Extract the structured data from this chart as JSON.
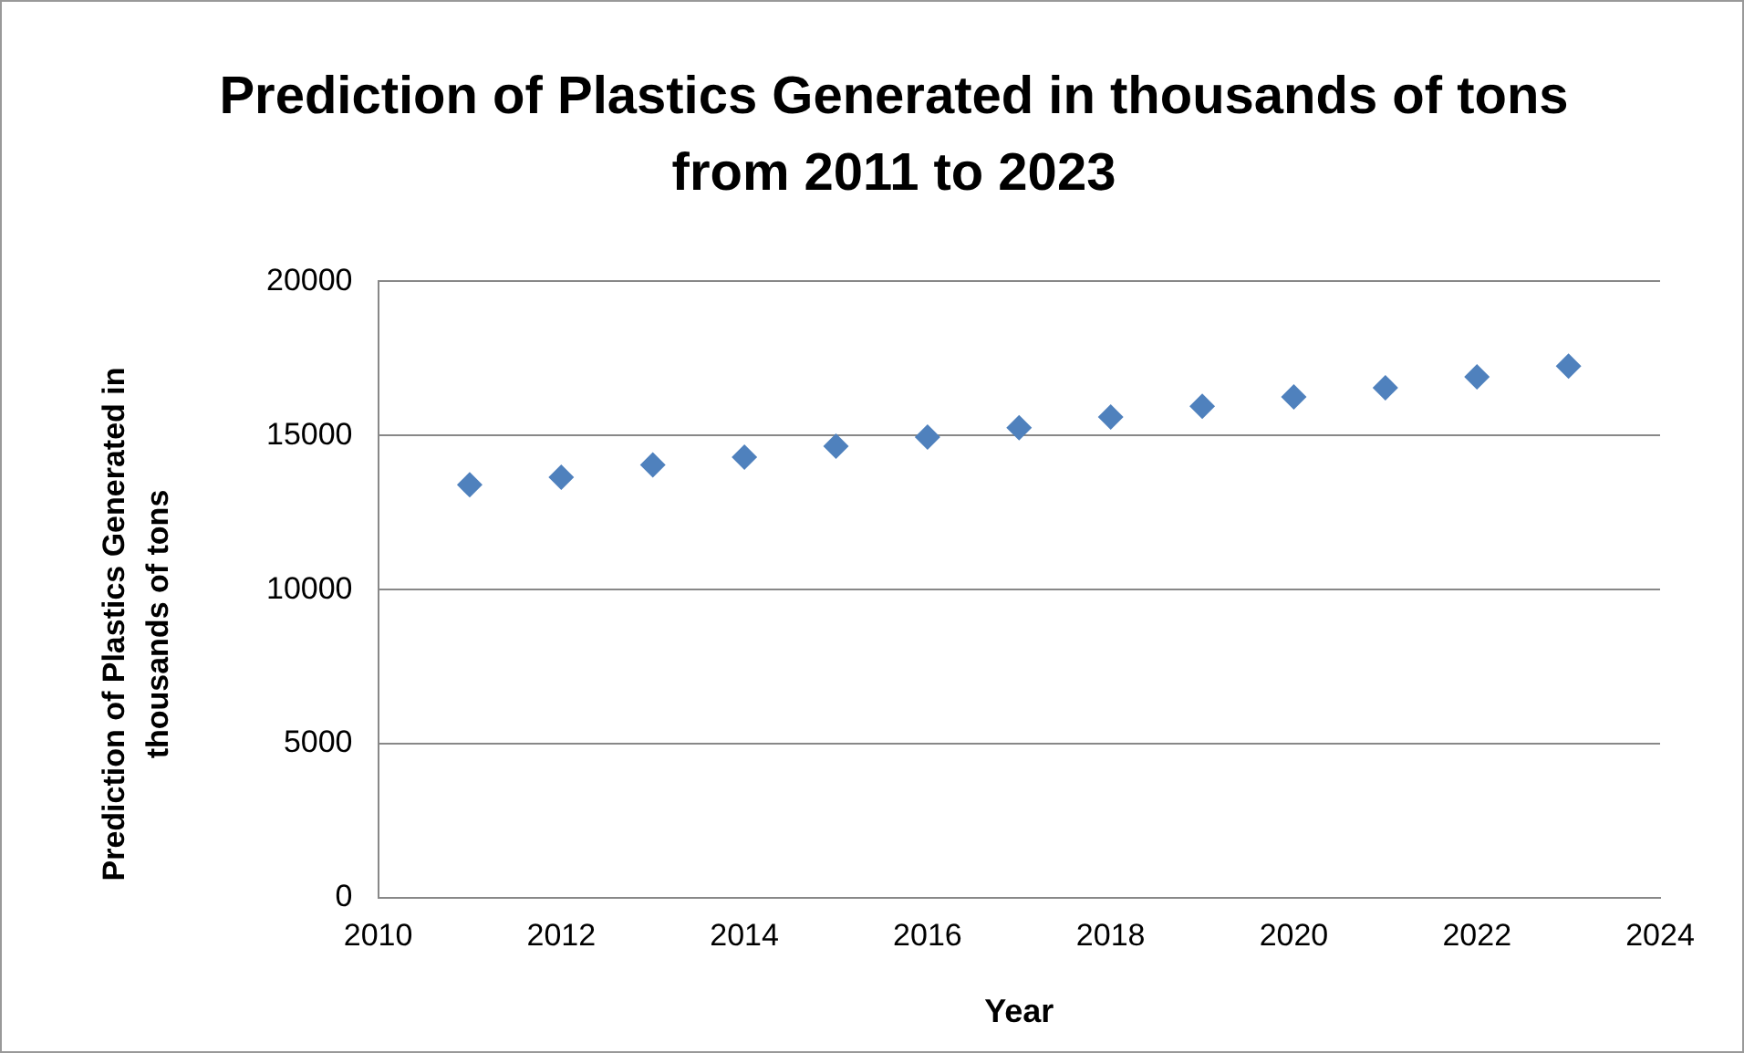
{
  "chart_data": {
    "type": "scatter",
    "title": "Prediction of Plastics Generated in thousands of tons from 2011 to 2023",
    "xlabel": "Year",
    "ylabel": "Prediction of Plastics Generated in thousands of tons",
    "x": [
      2011,
      2012,
      2013,
      2014,
      2015,
      2016,
      2017,
      2018,
      2019,
      2020,
      2021,
      2022,
      2023
    ],
    "series": [
      {
        "color": "#4f81bd",
        "values": [
          13400,
          13650,
          14050,
          14300,
          14650,
          14950,
          15250,
          15600,
          15950,
          16250,
          16550,
          16900,
          17250
        ]
      }
    ],
    "xlim": [
      2010,
      2024
    ],
    "xticks": [
      2010,
      2012,
      2014,
      2016,
      2018,
      2020,
      2022,
      2024
    ],
    "ylim": [
      0,
      20000
    ],
    "yticks": [
      0,
      5000,
      10000,
      15000,
      20000
    ],
    "grid": "y",
    "legend": false,
    "marker": "diamond"
  }
}
